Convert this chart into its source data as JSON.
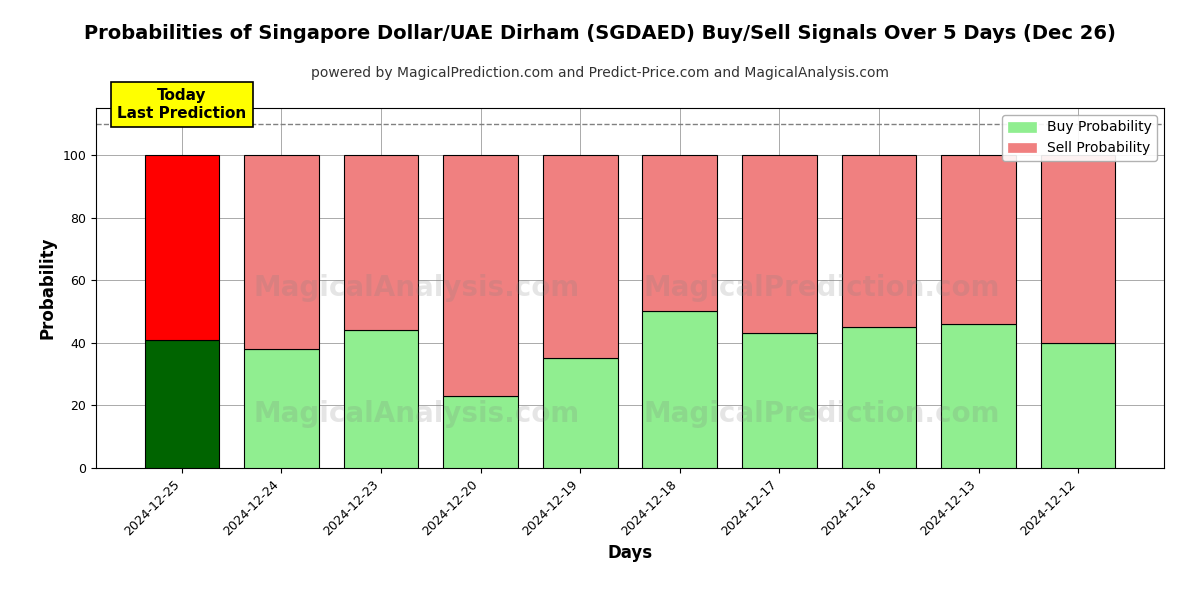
{
  "title": "Probabilities of Singapore Dollar/UAE Dirham (SGDAED) Buy/Sell Signals Over 5 Days (Dec 26)",
  "subtitle": "powered by MagicalPrediction.com and Predict-Price.com and MagicalAnalysis.com",
  "xlabel": "Days",
  "ylabel": "Probability",
  "categories": [
    "2024-12-25",
    "2024-12-24",
    "2024-12-23",
    "2024-12-20",
    "2024-12-19",
    "2024-12-18",
    "2024-12-17",
    "2024-12-16",
    "2024-12-13",
    "2024-12-12"
  ],
  "buy_values": [
    41,
    38,
    44,
    23,
    35,
    50,
    43,
    45,
    46,
    40
  ],
  "sell_values": [
    59,
    62,
    56,
    77,
    65,
    50,
    57,
    55,
    54,
    60
  ],
  "today_bar_buy_color": "#006400",
  "today_bar_sell_color": "#FF0000",
  "other_bar_buy_color": "#90EE90",
  "other_bar_sell_color": "#F08080",
  "bar_edge_color": "#000000",
  "legend_buy_color": "#90EE90",
  "legend_sell_color": "#F08080",
  "today_label_bg": "#FFFF00",
  "today_label_text": "Today\nLast Prediction",
  "dashed_line_y": 110,
  "ylim": [
    0,
    115
  ],
  "yticks": [
    0,
    20,
    40,
    60,
    80,
    100
  ],
  "watermark_text1": "MagicalAnalysis.com",
  "watermark_text2": "MagicalPrediction.com",
  "grid_color": "#aaaaaa",
  "title_fontsize": 14,
  "subtitle_fontsize": 10,
  "axis_label_fontsize": 12,
  "tick_fontsize": 9,
  "legend_fontsize": 10,
  "bar_width": 0.75
}
